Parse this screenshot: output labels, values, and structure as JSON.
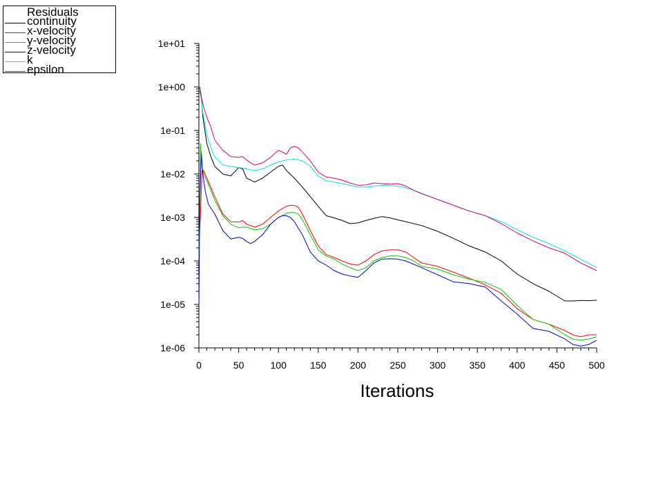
{
  "chart_data": {
    "type": "line",
    "title": "",
    "xlabel": "Iterations",
    "ylabel": "",
    "yscale": "log",
    "xlim": [
      0,
      500
    ],
    "ylim": [
      1e-06,
      10
    ],
    "grid": false,
    "legend_placement": "top-left",
    "legend_title": "Residuals",
    "xticks": [
      0,
      50,
      100,
      150,
      200,
      250,
      300,
      350,
      400,
      450,
      500
    ],
    "xtick_labels": [
      "0",
      "50",
      "100",
      "150",
      "200",
      "250",
      "300",
      "350",
      "400",
      "450",
      "500"
    ],
    "yticks": [
      1e-06,
      1e-05,
      0.0001,
      0.001,
      0.01,
      0.1,
      1,
      10
    ],
    "ytick_labels": [
      "1e-06",
      "1e-05",
      "1e-04",
      "1e-03",
      "1e-02",
      "1e-01",
      "1e+00",
      "1e+01"
    ],
    "series": [
      {
        "name": "continuity",
        "color": "#000000",
        "x": [
          1,
          3,
          5,
          10,
          15,
          20,
          30,
          40,
          50,
          55,
          60,
          70,
          80,
          90,
          100,
          105,
          110,
          120,
          130,
          140,
          150,
          160,
          170,
          180,
          190,
          200,
          210,
          220,
          230,
          240,
          250,
          260,
          280,
          300,
          320,
          340,
          360,
          380,
          400,
          420,
          440,
          460,
          470,
          480,
          490,
          500
        ],
        "y": [
          1.0,
          0.6,
          0.2,
          0.05,
          0.025,
          0.015,
          0.01,
          0.009,
          0.014,
          0.013,
          0.008,
          0.0065,
          0.008,
          0.011,
          0.015,
          0.016,
          0.012,
          0.008,
          0.005,
          0.003,
          0.0018,
          0.0011,
          0.00098,
          0.00085,
          0.00072,
          0.00075,
          0.00085,
          0.00095,
          0.00105,
          0.00098,
          0.00088,
          0.0008,
          0.00065,
          0.00048,
          0.00033,
          0.00022,
          0.00016,
          0.0001,
          5e-05,
          3e-05,
          2e-05,
          1.2e-05,
          1.2e-05,
          1.23e-05,
          1.22e-05,
          1.25e-05
        ]
      },
      {
        "name": "x-velocity",
        "color": "#ff0000",
        "x": [
          0,
          2,
          4,
          6,
          10,
          20,
          30,
          40,
          50,
          55,
          60,
          70,
          80,
          90,
          100,
          105,
          110,
          115,
          120,
          125,
          130,
          140,
          150,
          160,
          170,
          180,
          190,
          200,
          210,
          220,
          230,
          240,
          250,
          260,
          270,
          280,
          300,
          320,
          340,
          360,
          380,
          400,
          420,
          440,
          460,
          470,
          480,
          490,
          500
        ],
        "y": [
          0.0002,
          0.0012,
          0.012,
          0.012,
          0.008,
          0.003,
          0.0012,
          0.0008,
          0.00078,
          0.00085,
          0.0007,
          0.0006,
          0.0007,
          0.001,
          0.0014,
          0.0016,
          0.0018,
          0.0019,
          0.0019,
          0.0017,
          0.0012,
          0.0005,
          0.00022,
          0.00014,
          0.00012,
          0.0001,
          8.5e-05,
          8e-05,
          0.0001,
          0.00014,
          0.00017,
          0.00018,
          0.00018,
          0.00016,
          0.00012,
          9e-05,
          7.5e-05,
          5.5e-05,
          4e-05,
          2.8e-05,
          1.8e-05,
          8e-06,
          4.5e-06,
          3.5e-06,
          2.5e-06,
          2e-06,
          1.8e-06,
          2e-06,
          2e-06
        ]
      },
      {
        "name": "y-velocity",
        "color": "#00cc00",
        "x": [
          0,
          2,
          4,
          6,
          10,
          20,
          30,
          40,
          50,
          55,
          60,
          70,
          80,
          90,
          100,
          105,
          110,
          115,
          120,
          125,
          130,
          140,
          150,
          160,
          170,
          180,
          190,
          200,
          210,
          220,
          230,
          240,
          250,
          260,
          270,
          280,
          300,
          320,
          340,
          360,
          380,
          400,
          420,
          440,
          460,
          470,
          480,
          490,
          500
        ],
        "y": [
          0.0001,
          0.05,
          0.015,
          0.01,
          0.007,
          0.0025,
          0.0011,
          0.0007,
          0.00058,
          0.0006,
          0.0006,
          0.00052,
          0.00055,
          0.0007,
          0.001,
          0.0011,
          0.00125,
          0.0013,
          0.0013,
          0.0012,
          0.0009,
          0.0004,
          0.00018,
          0.00013,
          0.00011,
          8.5e-05,
          7e-05,
          6e-05,
          7e-05,
          0.0001,
          0.00012,
          0.00013,
          0.00013,
          0.00012,
          0.0001,
          7.5e-05,
          6.5e-05,
          4.8e-05,
          3.8e-05,
          3.2e-05,
          2.2e-05,
          9.5e-06,
          4.5e-06,
          3.5e-06,
          2e-06,
          1.6e-06,
          1.5e-06,
          1.6e-06,
          1.8e-06
        ]
      },
      {
        "name": "z-velocity",
        "color": "#0000cc",
        "x": [
          0,
          1,
          3,
          5,
          8,
          12,
          20,
          30,
          40,
          50,
          55,
          60,
          65,
          70,
          80,
          90,
          100,
          105,
          110,
          115,
          120,
          130,
          140,
          150,
          160,
          170,
          180,
          190,
          200,
          210,
          220,
          230,
          240,
          250,
          260,
          280,
          300,
          320,
          340,
          360,
          380,
          400,
          420,
          440,
          460,
          470,
          480,
          490,
          500
        ],
        "y": [
          8e-06,
          0.002,
          0.03,
          0.01,
          0.004,
          0.002,
          0.0012,
          0.0005,
          0.00032,
          0.00035,
          0.00033,
          0.00028,
          0.00025,
          0.00028,
          0.0004,
          0.0007,
          0.001,
          0.0011,
          0.0011,
          0.001,
          0.0008,
          0.0004,
          0.00016,
          0.0001,
          8e-05,
          6e-05,
          5e-05,
          4.5e-05,
          4.2e-05,
          6e-05,
          9e-05,
          0.00011,
          0.000112,
          0.00011,
          0.0001,
          7e-05,
          4.8e-05,
          3.3e-05,
          3e-05,
          2.5e-05,
          1.2e-05,
          6e-06,
          2.8e-06,
          2.4e-06,
          1.6e-06,
          1.2e-06,
          1.1e-06,
          1.2e-06,
          1.5e-06
        ]
      },
      {
        "name": "k",
        "color": "#00e5e5",
        "x": [
          1,
          3,
          5,
          10,
          15,
          20,
          30,
          40,
          50,
          60,
          70,
          80,
          90,
          100,
          110,
          120,
          130,
          140,
          150,
          160,
          170,
          180,
          190,
          200,
          210,
          220,
          230,
          240,
          250,
          260,
          270,
          280,
          300,
          320,
          340,
          360,
          380,
          400,
          420,
          440,
          460,
          480,
          500
        ],
        "y": [
          0.9,
          0.5,
          0.25,
          0.08,
          0.04,
          0.025,
          0.016,
          0.015,
          0.014,
          0.013,
          0.012,
          0.013,
          0.016,
          0.019,
          0.021,
          0.022,
          0.02,
          0.015,
          0.009,
          0.007,
          0.0065,
          0.006,
          0.0055,
          0.005,
          0.005,
          0.0052,
          0.0055,
          0.0054,
          0.0052,
          0.0048,
          0.0042,
          0.0036,
          0.0026,
          0.0019,
          0.0014,
          0.0011,
          0.0008,
          0.00052,
          0.00035,
          0.00025,
          0.00017,
          0.00011,
          7e-05
        ]
      },
      {
        "name": "epsilon",
        "color": "#d80080",
        "x": [
          1,
          3,
          5,
          10,
          15,
          20,
          30,
          40,
          50,
          55,
          60,
          65,
          70,
          80,
          90,
          100,
          105,
          110,
          115,
          120,
          125,
          130,
          140,
          150,
          160,
          170,
          180,
          190,
          200,
          210,
          220,
          230,
          240,
          250,
          260,
          270,
          280,
          300,
          320,
          340,
          360,
          380,
          400,
          420,
          440,
          460,
          480,
          500
        ],
        "y": [
          0.8,
          0.6,
          0.4,
          0.2,
          0.12,
          0.06,
          0.035,
          0.025,
          0.024,
          0.025,
          0.021,
          0.018,
          0.016,
          0.018,
          0.024,
          0.035,
          0.032,
          0.028,
          0.04,
          0.043,
          0.04,
          0.032,
          0.02,
          0.011,
          0.0085,
          0.008,
          0.0072,
          0.0062,
          0.0055,
          0.0056,
          0.0062,
          0.006,
          0.0058,
          0.006,
          0.0053,
          0.0042,
          0.0035,
          0.0026,
          0.0019,
          0.0014,
          0.0011,
          0.00072,
          0.00044,
          0.00029,
          0.0002,
          0.00015,
          9e-05,
          6e-05
        ]
      }
    ]
  }
}
